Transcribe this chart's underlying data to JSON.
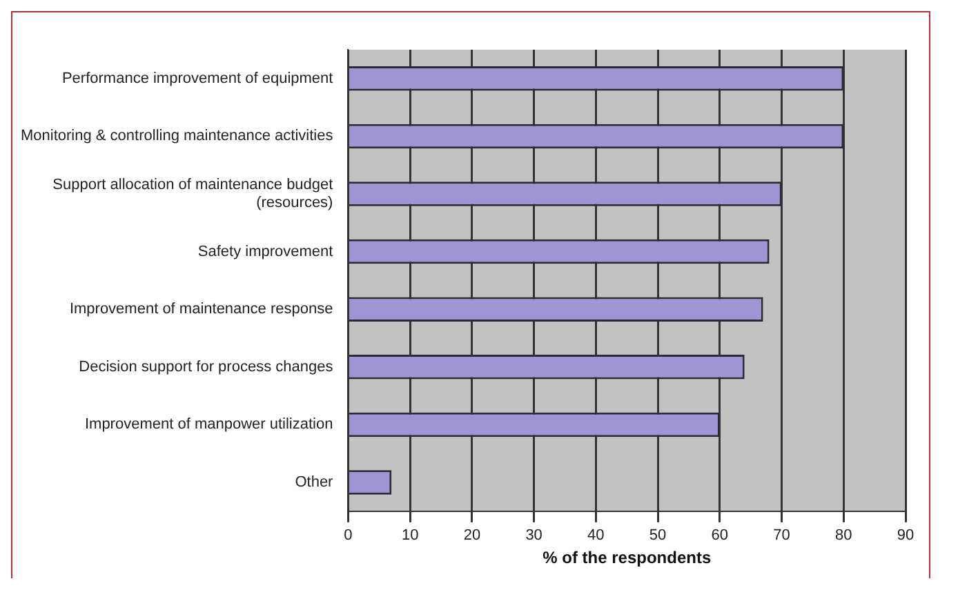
{
  "chart_data": {
    "type": "bar",
    "orientation": "horizontal",
    "categories": [
      "Performance improvement of equipment",
      "Monitoring & controlling maintenance activities",
      "Support allocation of maintenance budget (resources)",
      "Safety improvement",
      "Improvement of maintenance response",
      "Decision support for process changes",
      "Improvement of manpower utilization",
      "Other"
    ],
    "values": [
      80,
      80,
      70,
      68,
      67,
      64,
      60,
      7
    ],
    "color": "#a094d4",
    "xlabel": "% of the respondents",
    "xlim": [
      0,
      90
    ],
    "xticks": [
      0,
      10,
      20,
      30,
      40,
      50,
      60,
      70,
      80,
      90
    ],
    "grid": "x",
    "legend": false
  }
}
